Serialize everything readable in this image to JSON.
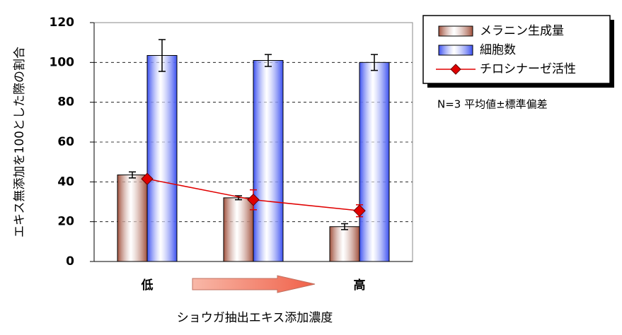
{
  "chart_data": {
    "type": "bar",
    "y_label": "エキス無添加を100とした際の割合",
    "x_label": "ショウガ抽出エキス添加濃度",
    "annotation": "N=3 平均値±標準偏差",
    "categories": [
      "低",
      null,
      "高"
    ],
    "series": [
      {
        "name": "メラニン生成量",
        "type": "bar",
        "color": "#a0503c",
        "values": [
          43.5,
          32,
          17.5
        ],
        "errors": [
          1.5,
          1,
          1.5
        ]
      },
      {
        "name": "細胞数",
        "type": "bar",
        "color": "#3a4ff0",
        "values": [
          103.5,
          101,
          100
        ],
        "errors": [
          8,
          3,
          4
        ]
      },
      {
        "name": "チロシナーゼ活性",
        "type": "line",
        "color": "#e00000",
        "values": [
          41.5,
          31,
          25.5
        ],
        "errors": [
          1,
          5,
          3
        ]
      }
    ],
    "ylim": [
      0,
      120
    ],
    "yticks": [
      0,
      20,
      40,
      60,
      80,
      100,
      120
    ],
    "grid": true
  }
}
